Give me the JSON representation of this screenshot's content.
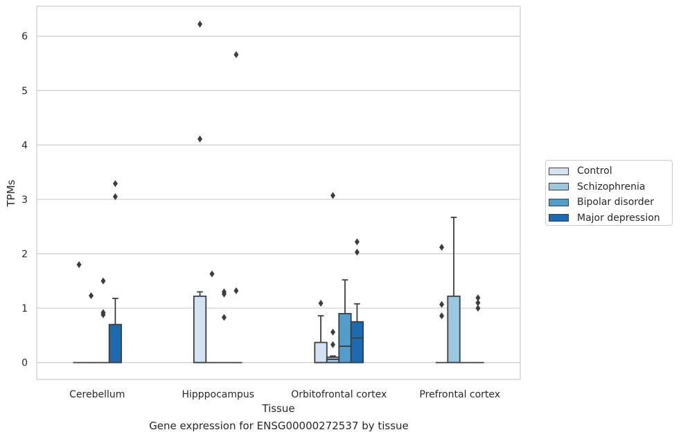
{
  "chart_data": {
    "type": "box",
    "title": "Gene expression for ENSG00000272537 by tissue",
    "xlabel": "Tissue",
    "ylabel": "TPMs",
    "ylim": [
      -0.31,
      6.55
    ],
    "yticks": [
      0,
      1,
      2,
      3,
      4,
      5,
      6
    ],
    "grid": "horizontal",
    "legend_position": "right",
    "categories": [
      "Cerebellum",
      "Hipppocampus",
      "Orbitofrontal cortex",
      "Prefrontal cortex"
    ],
    "series": [
      {
        "name": "Control",
        "color": "#d2e3f3",
        "boxes": [
          {
            "q1": 0,
            "median": 0,
            "q3": 0,
            "whisker_low": 0,
            "whisker_high": 0,
            "outliers": [
              1.8
            ]
          },
          {
            "q1": 0,
            "median": 0,
            "q3": 1.22,
            "whisker_low": 0,
            "whisker_high": 1.3,
            "outliers": [
              6.22,
              4.11
            ]
          },
          {
            "q1": 0,
            "median": 0,
            "q3": 0.37,
            "whisker_low": 0,
            "whisker_high": 0.86,
            "outliers": [
              1.09
            ]
          },
          {
            "q1": 0,
            "median": 0,
            "q3": 0,
            "whisker_low": 0,
            "whisker_high": 0,
            "outliers": [
              2.12,
              1.07,
              0.86
            ]
          }
        ]
      },
      {
        "name": "Schizophrenia",
        "color": "#9ac8e0",
        "boxes": [
          {
            "q1": 0,
            "median": 0,
            "q3": 0,
            "whisker_low": 0,
            "whisker_high": 0,
            "outliers": [
              1.23
            ]
          },
          {
            "q1": 0,
            "median": 0,
            "q3": 0,
            "whisker_low": 0,
            "whisker_high": 0,
            "outliers": [
              1.63
            ]
          },
          {
            "q1": 0,
            "median": 0.06,
            "q3": 0.1,
            "whisker_low": 0,
            "whisker_high": 0.12,
            "outliers": [
              3.07,
              0.56,
              0.33
            ]
          },
          {
            "q1": 0,
            "median": 0,
            "q3": 1.22,
            "whisker_low": 0,
            "whisker_high": 2.67,
            "outliers": []
          }
        ]
      },
      {
        "name": "Bipolar disorder",
        "color": "#529dcc",
        "boxes": [
          {
            "q1": 0,
            "median": 0,
            "q3": 0,
            "whisker_low": 0,
            "whisker_high": 0,
            "outliers": [
              1.5,
              0.92,
              0.88
            ]
          },
          {
            "q1": 0,
            "median": 0,
            "q3": 0,
            "whisker_low": 0,
            "whisker_high": 0,
            "outliers": [
              1.3,
              1.26,
              0.83
            ]
          },
          {
            "q1": 0,
            "median": 0.3,
            "q3": 0.9,
            "whisker_low": 0,
            "whisker_high": 1.52,
            "outliers": []
          },
          {
            "q1": 0,
            "median": 0,
            "q3": 0,
            "whisker_low": 0,
            "whisker_high": 0,
            "outliers": []
          }
        ]
      },
      {
        "name": "Major depression",
        "color": "#1c6aaf",
        "boxes": [
          {
            "q1": 0,
            "median": 0,
            "q3": 0.7,
            "whisker_low": 0,
            "whisker_high": 1.18,
            "outliers": [
              3.29,
              3.05
            ]
          },
          {
            "q1": 0,
            "median": 0,
            "q3": 0,
            "whisker_low": 0,
            "whisker_high": 0,
            "outliers": [
              5.66,
              1.32
            ]
          },
          {
            "q1": 0,
            "median": 0.45,
            "q3": 0.75,
            "whisker_low": 0,
            "whisker_high": 1.08,
            "outliers": [
              2.22,
              2.03
            ]
          },
          {
            "q1": 0,
            "median": 0,
            "q3": 0,
            "whisker_low": 0,
            "whisker_high": 0,
            "outliers": [
              1.19,
              1.1,
              1.0
            ]
          }
        ]
      }
    ]
  }
}
